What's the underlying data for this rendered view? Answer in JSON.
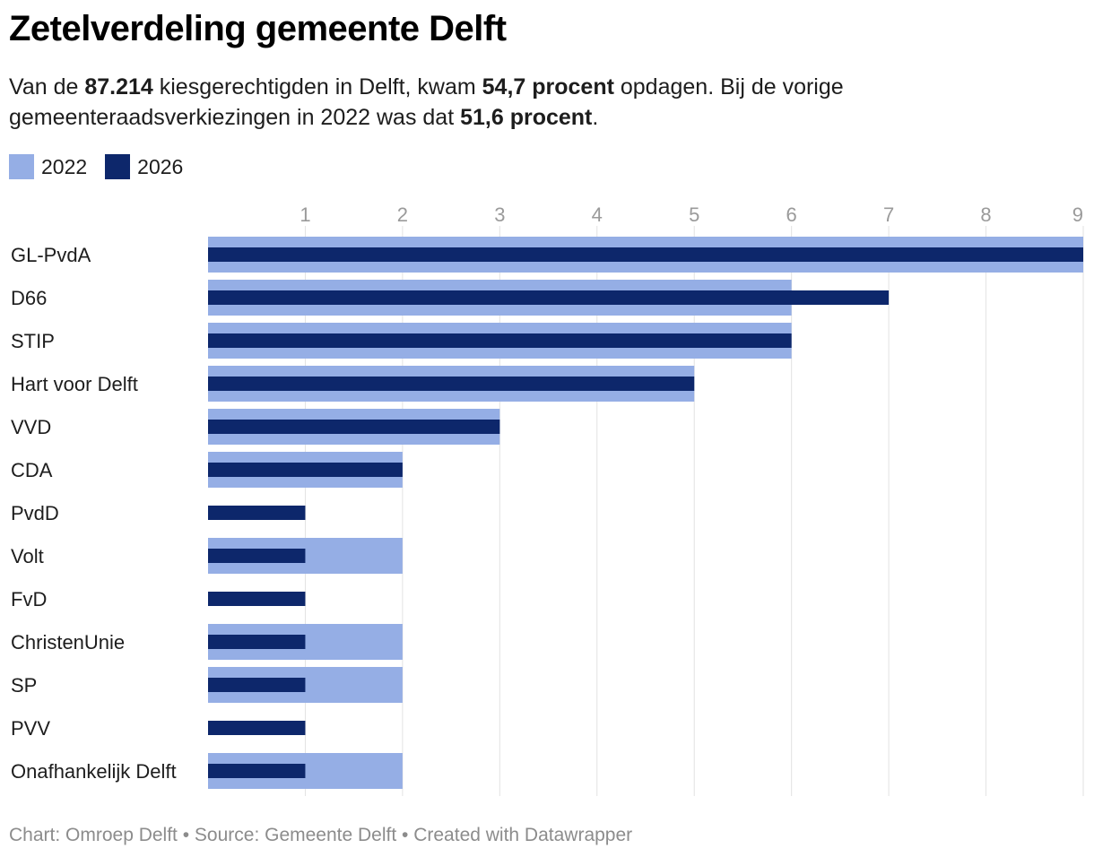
{
  "title": "Zetelverdeling gemeente Delft",
  "intro": {
    "p1": "Van de ",
    "b1": "87.214",
    "p2": " kiesgerechtigden in Delft, kwam ",
    "b2": "54,7 procent",
    "p3": " opdagen. Bij de vorige gemeenteraadsverkiezingen in 2022 was dat ",
    "b3": "51,6 procent",
    "p4": "."
  },
  "colors": {
    "s2022": "#95aee5",
    "s2026": "#0d276b",
    "grid": "#e2e2e2",
    "tick": "#9a9a9a",
    "label": "#1d1d1d"
  },
  "chart_data": {
    "type": "bar",
    "orientation": "horizontal",
    "categories": [
      "GL-PvdA",
      "D66",
      "STIP",
      "Hart voor Delft",
      "VVD",
      "CDA",
      "PvdD",
      "Volt",
      "FvD",
      "ChristenUnie",
      "SP",
      "PVV",
      "Onafhankelijk Delft"
    ],
    "series": [
      {
        "name": "2022",
        "values": [
          9,
          6,
          6,
          5,
          3,
          2,
          0,
          2,
          0,
          2,
          2,
          0,
          2
        ]
      },
      {
        "name": "2026",
        "values": [
          9,
          7,
          6,
          5,
          3,
          2,
          1,
          1,
          1,
          1,
          1,
          1,
          1
        ]
      }
    ],
    "xlim": [
      0,
      9
    ],
    "xticks": [
      "1",
      "2",
      "3",
      "4",
      "5",
      "6",
      "7",
      "8",
      "9"
    ],
    "grid": true,
    "legend_position": "top-left"
  },
  "footer": "Chart: Omroep Delft • Source: Gemeente Delft • Created with Datawrapper"
}
